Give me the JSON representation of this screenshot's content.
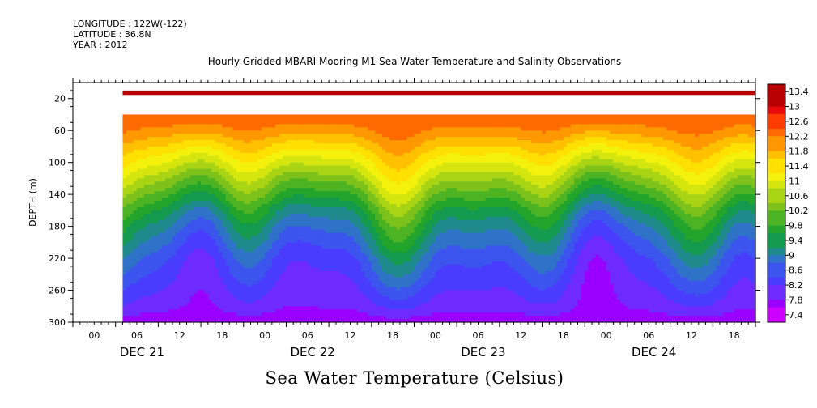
{
  "header": {
    "longitude": "LONGITUDE : 122W(-122)",
    "latitude": "LATITUDE : 36.8N",
    "year": "YEAR : 2012"
  },
  "chart_data": {
    "type": "heatmap",
    "title": "Hourly Gridded MBARI Mooring M1 Sea Water Temperature and Salinity Observations",
    "colorbar_title": "Sea Water Temperature (Celsius)",
    "ylabel": "DEPTH (m)",
    "xlim_hours": [
      0,
      96
    ],
    "ylim": [
      300,
      0
    ],
    "y_ticks": [
      20,
      60,
      100,
      140,
      180,
      220,
      260,
      300
    ],
    "x_hour_ticks": [
      "00",
      "06",
      "12",
      "18",
      "00",
      "06",
      "12",
      "18",
      "00",
      "06",
      "12",
      "18",
      "00",
      "06",
      "12",
      "18"
    ],
    "day_labels": [
      "DEC 21",
      "DEC 22",
      "DEC 23",
      "DEC 24"
    ],
    "colorbar_levels": [
      "13.4",
      "13",
      "12.6",
      "12.2",
      "11.8",
      "11.4",
      "11",
      "10.6",
      "10.2",
      "9.8",
      "9.4",
      "9",
      "8.6",
      "8.2",
      "7.8",
      "7.4"
    ],
    "data_start_hour": 7,
    "surface_sensor_depth_range": [
      10,
      20
    ],
    "missing_depth_range": [
      20,
      40
    ],
    "depth_profile": [
      {
        "depth": 10,
        "temp": 13.3
      },
      {
        "depth": 40,
        "temp": 12.5
      },
      {
        "depth": 60,
        "temp": 12.2
      },
      {
        "depth": 80,
        "temp": 11.7
      },
      {
        "depth": 100,
        "temp": 11.2
      },
      {
        "depth": 120,
        "temp": 10.7
      },
      {
        "depth": 140,
        "temp": 10.2
      },
      {
        "depth": 160,
        "temp": 9.7
      },
      {
        "depth": 180,
        "temp": 9.3
      },
      {
        "depth": 200,
        "temp": 9.0
      },
      {
        "depth": 220,
        "temp": 8.7
      },
      {
        "depth": 240,
        "temp": 8.5
      },
      {
        "depth": 260,
        "temp": 8.3
      },
      {
        "depth": 280,
        "temp": 8.1
      },
      {
        "depth": 300,
        "temp": 7.8
      }
    ],
    "colors": [
      "#cc00ff",
      "#9a00ff",
      "#6f2bff",
      "#4a3cff",
      "#3b55ee",
      "#2e73c8",
      "#1f8a8c",
      "#139a4e",
      "#22a52a",
      "#4cb322",
      "#7cc21a",
      "#a9d414",
      "#d4e60e",
      "#f4f20a",
      "#ffe000",
      "#ffc000",
      "#ff9800",
      "#ff6a00",
      "#ff3c00",
      "#e80a0a",
      "#b80000"
    ]
  }
}
